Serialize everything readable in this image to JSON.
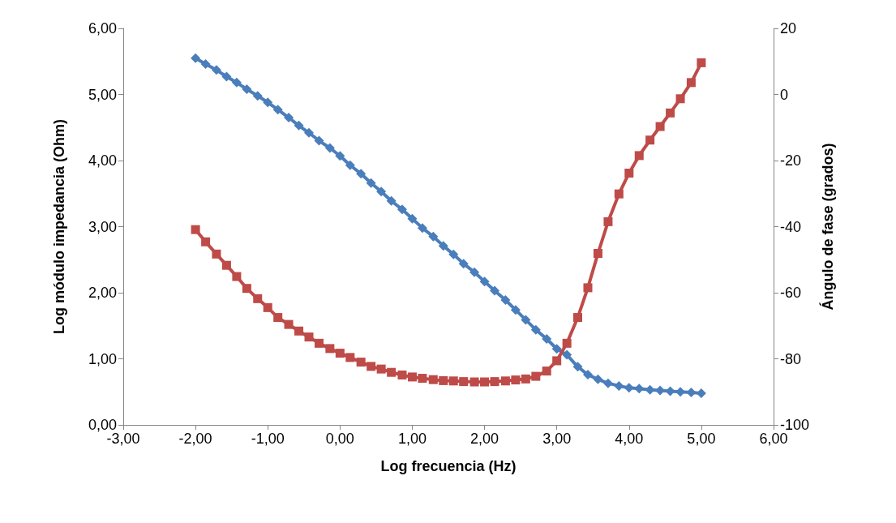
{
  "chart_data": {
    "type": "line",
    "xlabel": "Log frecuencia (Hz)",
    "ylabel": "Log módulo impedancia (Ohm)",
    "y2label": "Ángulo de fase (grados)",
    "x": [
      -2,
      -1.86,
      -1.71,
      -1.57,
      -1.43,
      -1.29,
      -1.14,
      -1,
      -0.86,
      -0.71,
      -0.57,
      -0.43,
      -0.29,
      -0.14,
      0,
      0.14,
      0.29,
      0.43,
      0.57,
      0.71,
      0.86,
      1,
      1.14,
      1.29,
      1.43,
      1.57,
      1.71,
      1.86,
      2,
      2.14,
      2.29,
      2.43,
      2.57,
      2.71,
      2.86,
      3,
      3.14,
      3.29,
      3.43,
      3.57,
      3.71,
      3.86,
      4,
      4.14,
      4.29,
      4.43,
      4.57,
      4.71,
      4.86,
      5
    ],
    "series": [
      {
        "color": "#4a7ebb",
        "marker": "diamond",
        "values": [
          5.55,
          5.46,
          5.37,
          5.27,
          5.18,
          5.08,
          4.98,
          4.88,
          4.77,
          4.65,
          4.53,
          4.42,
          4.3,
          4.19,
          4.07,
          3.93,
          3.8,
          3.66,
          3.53,
          3.39,
          3.26,
          3.12,
          2.98,
          2.85,
          2.71,
          2.58,
          2.44,
          2.31,
          2.17,
          2.03,
          1.89,
          1.74,
          1.59,
          1.44,
          1.3,
          1.15,
          1.06,
          0.88,
          0.76,
          0.69,
          0.63,
          0.59,
          0.56,
          0.55,
          0.53,
          0.52,
          0.51,
          0.5,
          0.49,
          0.48
        ]
      },
      {
        "color": "#be4b48",
        "marker": "square",
        "axis": "y2",
        "values": [
          -40.9,
          -44.6,
          -48.3,
          -51.7,
          -55.1,
          -58.7,
          -61.8,
          -64.5,
          -67.5,
          -69.6,
          -71.6,
          -73.4,
          -75.3,
          -76.9,
          -78.3,
          -79.6,
          -81.0,
          -82.3,
          -83.1,
          -84.1,
          -84.9,
          -85.5,
          -85.9,
          -86.3,
          -86.6,
          -86.7,
          -86.9,
          -87.0,
          -87.0,
          -86.9,
          -86.7,
          -86.4,
          -86.1,
          -85.3,
          -83.7,
          -80.6,
          -75.3,
          -67.5,
          -58.5,
          -48.1,
          -38.5,
          -30.1,
          -23.8,
          -18.5,
          -13.8,
          -9.7,
          -5.6,
          -1.3,
          3.6,
          9.6
        ]
      }
    ],
    "xlim": [
      -3,
      6
    ],
    "xticks": [
      {
        "value": -3,
        "label": "-3,00"
      },
      {
        "value": -2,
        "label": "-2,00"
      },
      {
        "value": -1,
        "label": "-1,00"
      },
      {
        "value": 0,
        "label": "0,00"
      },
      {
        "value": 1,
        "label": "1,00"
      },
      {
        "value": 2,
        "label": "2,00"
      },
      {
        "value": 3,
        "label": "3,00"
      },
      {
        "value": 4,
        "label": "4,00"
      },
      {
        "value": 5,
        "label": "5,00"
      },
      {
        "value": 6,
        "label": "6,00"
      }
    ],
    "ylim": [
      0,
      6
    ],
    "yticks": [
      {
        "value": 0,
        "label": "0,00"
      },
      {
        "value": 1,
        "label": "1,00"
      },
      {
        "value": 2,
        "label": "2,00"
      },
      {
        "value": 3,
        "label": "3,00"
      },
      {
        "value": 4,
        "label": "4,00"
      },
      {
        "value": 5,
        "label": "5,00"
      },
      {
        "value": 6,
        "label": "6,00"
      }
    ],
    "y2lim": [
      -100,
      20
    ],
    "y2ticks": [
      -100,
      -80,
      -60,
      -40,
      -20,
      0,
      20
    ],
    "grid": false,
    "line_style": "solid"
  }
}
